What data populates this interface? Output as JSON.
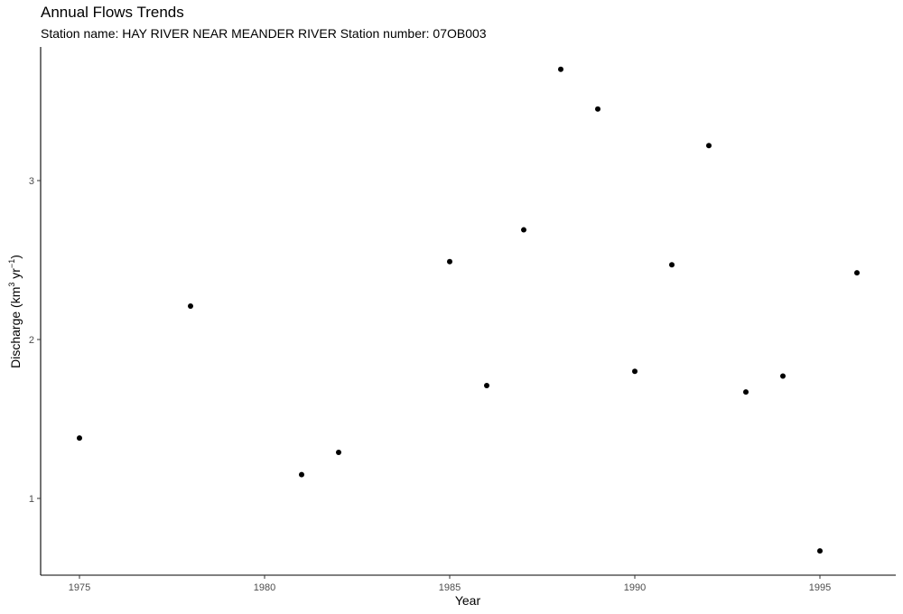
{
  "chart_data": {
    "type": "scatter",
    "title": "Annual Flows Trends",
    "subtitle": "Station name: HAY RIVER NEAR MEANDER RIVER Station number: 07OB003",
    "xlabel": "Year",
    "ylabel": {
      "prefix": "Discharge (km",
      "unit_sup": "3",
      "middle": " yr",
      "rate_sup": "−1",
      "suffix": ")"
    },
    "xlim": [
      1974,
      1997
    ],
    "ylim": [
      0.52,
      3.85
    ],
    "x_ticks": [
      1975,
      1980,
      1985,
      1990,
      1995
    ],
    "x_tick_labels": [
      "1975",
      "1980",
      "1985",
      "1990",
      "1995"
    ],
    "y_ticks": [
      1,
      2,
      3
    ],
    "y_tick_labels": [
      "1",
      "2",
      "3"
    ],
    "grid": false,
    "legend": "none",
    "point_color": "#000000",
    "x": [
      1975,
      1978,
      1981,
      1982,
      1985,
      1986,
      1987,
      1988,
      1989,
      1990,
      1991,
      1992,
      1993,
      1994,
      1995,
      1996
    ],
    "y": [
      1.38,
      2.21,
      1.15,
      1.29,
      2.49,
      1.71,
      2.69,
      3.7,
      3.45,
      1.8,
      2.47,
      3.22,
      1.67,
      1.77,
      0.67,
      2.42
    ]
  }
}
